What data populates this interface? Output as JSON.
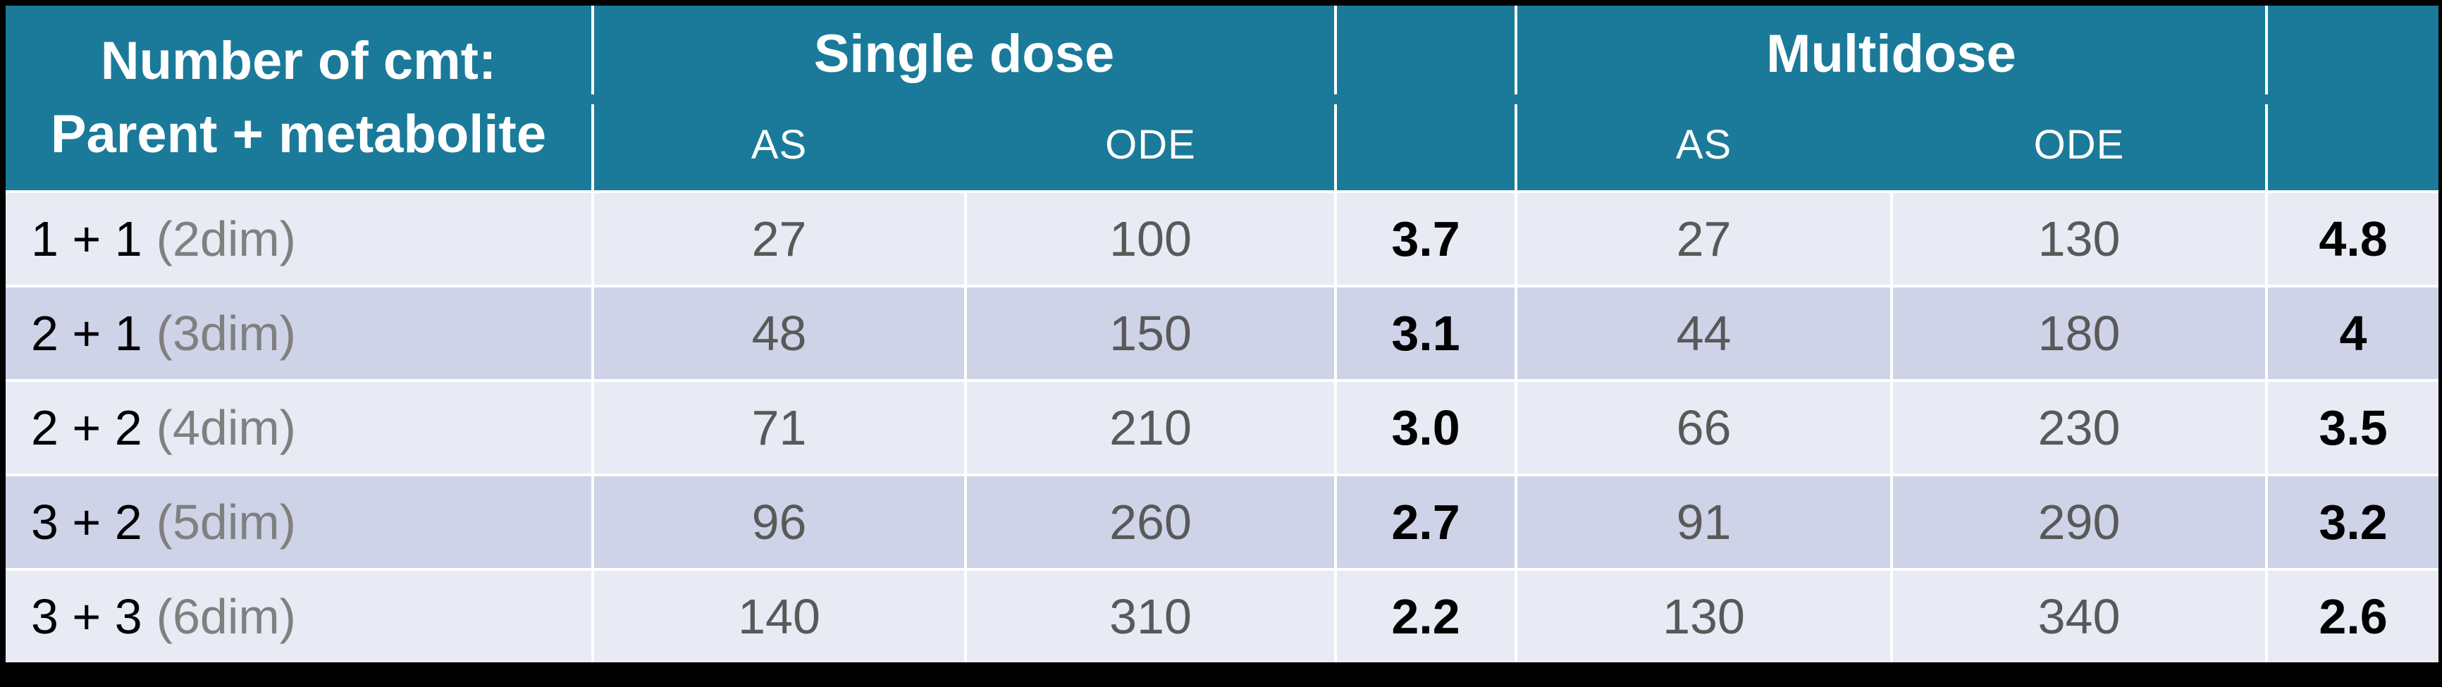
{
  "colors": {
    "header_teal": "#1B7A99",
    "row_light": "#E8EAF4",
    "row_dark": "#CED3E8",
    "grid_line_white": "#FFFFFF",
    "value_gray": "#595959",
    "dim_label_gray": "#808080",
    "ratio_black": "#000000",
    "page_background": "#000000"
  },
  "header": {
    "row_label_line1": "Number of cmt:",
    "row_label_line2": "Parent + metabolite",
    "single_dose_label": "Single dose",
    "multidose_label": "Multidose",
    "single_as": "AS",
    "single_ode": "ODE",
    "multi_as": "AS",
    "multi_ode": "ODE",
    "single_ratio_label": "",
    "multi_ratio_label": ""
  },
  "rows": [
    {
      "label": "1 + 1",
      "dim": "(2dim)",
      "single_as": "27",
      "single_ode": "100",
      "single_ratio": "3.7",
      "multi_as": "27",
      "multi_ode": "130",
      "multi_ratio": "4.8"
    },
    {
      "label": "2 + 1",
      "dim": "(3dim)",
      "single_as": "48",
      "single_ode": "150",
      "single_ratio": "3.1",
      "multi_as": "44",
      "multi_ode": "180",
      "multi_ratio": "4"
    },
    {
      "label": "2 + 2",
      "dim": "(4dim)",
      "single_as": "71",
      "single_ode": "210",
      "single_ratio": "3.0",
      "multi_as": "66",
      "multi_ode": "230",
      "multi_ratio": "3.5"
    },
    {
      "label": "3 + 2",
      "dim": "(5dim)",
      "single_as": "96",
      "single_ode": "260",
      "single_ratio": "2.7",
      "multi_as": "91",
      "multi_ode": "290",
      "multi_ratio": "3.2"
    },
    {
      "label": "3 + 3",
      "dim": "(6dim)",
      "single_as": "140",
      "single_ode": "310",
      "single_ratio": "2.2",
      "multi_as": "130",
      "multi_ode": "340",
      "multi_ratio": "2.6"
    }
  ],
  "chart_data": {
    "type": "table",
    "header_row_1": [
      "Number of cmt: Parent + metabolite",
      "Single dose",
      "",
      "Multidose",
      ""
    ],
    "header_row_2": [
      "",
      "AS",
      "ODE",
      "",
      "AS",
      "ODE",
      ""
    ],
    "rows": [
      [
        "1 + 1 (2dim)",
        27,
        100,
        3.7,
        27,
        130,
        4.8
      ],
      [
        "2 + 1 (3dim)",
        48,
        150,
        3.1,
        44,
        180,
        4
      ],
      [
        "2 + 2 (4dim)",
        71,
        210,
        3.0,
        66,
        230,
        3.5
      ],
      [
        "3 + 2 (5dim)",
        96,
        260,
        2.7,
        91,
        290,
        3.2
      ],
      [
        "3 + 3 (6dim)",
        140,
        310,
        2.2,
        130,
        340,
        2.6
      ]
    ],
    "notes_layout": "teal two-level header; unlabeled bold ratio columns after each ODE column; alternating lavender row striping; white grid lines; black page border"
  }
}
